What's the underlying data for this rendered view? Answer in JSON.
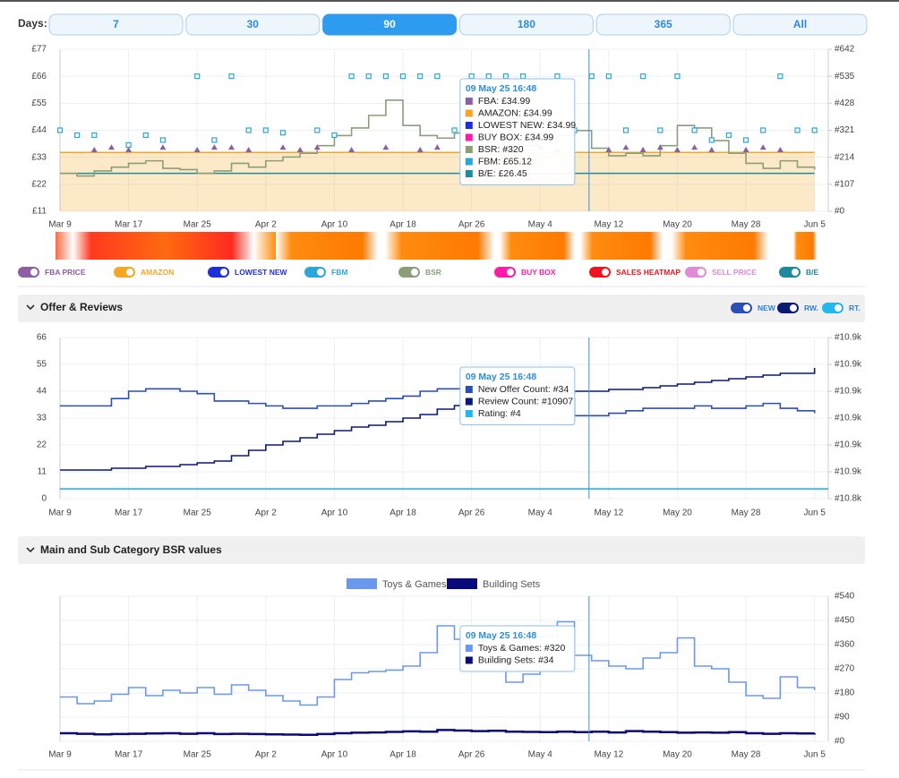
{
  "days": {
    "label": "Days:",
    "options": [
      "7",
      "30",
      "90",
      "180",
      "365",
      "All"
    ],
    "active": 2
  },
  "price_chart": {
    "xlim": [
      0,
      89.6
    ],
    "xticks": [
      {
        "value": 0,
        "label": "Mar 9"
      },
      {
        "value": 8,
        "label": "Mar 17"
      },
      {
        "value": 16,
        "label": "Mar 25"
      },
      {
        "value": 24,
        "label": "Apr 2"
      },
      {
        "value": 32,
        "label": "Apr 10"
      },
      {
        "value": 40,
        "label": "Apr 18"
      },
      {
        "value": 48,
        "label": "Apr 26"
      },
      {
        "value": 56,
        "label": "May 4"
      },
      {
        "value": 64,
        "label": "May 12"
      },
      {
        "value": 72,
        "label": "May 20"
      },
      {
        "value": 80,
        "label": "May 28"
      },
      {
        "value": 88,
        "label": "Jun 5"
      }
    ],
    "ylim": [
      11,
      77
    ],
    "yticks": [
      {
        "value": 11,
        "label": "£11"
      },
      {
        "value": 22,
        "label": "£22"
      },
      {
        "value": 33,
        "label": "£33"
      },
      {
        "value": 44,
        "label": "£44"
      },
      {
        "value": 55,
        "label": "£55"
      },
      {
        "value": 66,
        "label": "£66"
      },
      {
        "value": 77,
        "label": "£77"
      }
    ],
    "y2lim": [
      0,
      642
    ],
    "y2ticks": [
      {
        "value": 0,
        "label": "#0"
      },
      {
        "value": 107,
        "label": "#107"
      },
      {
        "value": 214,
        "label": "#214"
      },
      {
        "value": 321,
        "label": "#321"
      },
      {
        "value": 428,
        "label": "#428"
      },
      {
        "value": 535,
        "label": "#535"
      },
      {
        "value": 642,
        "label": "#642"
      }
    ],
    "series": [
      {
        "kind": "area",
        "color": "#f5a623",
        "x": [
          0,
          88
        ],
        "values": [
          34.99,
          34.99
        ]
      },
      {
        "kind": "line",
        "color": "#1f8a99",
        "x": [
          0,
          88
        ],
        "values": [
          26.45,
          26.45
        ]
      },
      {
        "kind": "step",
        "color": "#8a9f78",
        "axis": "y2",
        "x": [
          0,
          2,
          4,
          6,
          8,
          10,
          12,
          14,
          16,
          18,
          20,
          22,
          24,
          26,
          28,
          30,
          32,
          34,
          36,
          38,
          40,
          42,
          44,
          46,
          48,
          50,
          52,
          54,
          56,
          58,
          60,
          62,
          64,
          66,
          68,
          70,
          72,
          74,
          76,
          78,
          80,
          82,
          84,
          86,
          88
        ],
        "values": [
          150,
          140,
          160,
          175,
          190,
          200,
          170,
          165,
          150,
          160,
          190,
          175,
          200,
          215,
          230,
          260,
          300,
          330,
          380,
          440,
          340,
          300,
          290,
          310,
          350,
          300,
          280,
          260,
          270,
          300,
          320,
          250,
          220,
          230,
          220,
          260,
          340,
          330,
          280,
          230,
          190,
          170,
          200,
          175,
          165
        ]
      },
      {
        "kind": "triangle",
        "color": "#8e5ea2",
        "x": [
          4,
          6,
          8,
          12,
          16,
          18,
          20,
          22,
          26,
          28,
          30,
          34,
          38,
          42,
          44,
          48,
          50,
          52,
          56,
          58,
          64,
          66,
          68,
          70,
          72,
          74,
          76,
          80,
          82,
          84
        ],
        "values": [
          36,
          37,
          36,
          37,
          36,
          37,
          37,
          36,
          37,
          36,
          37,
          36,
          37,
          36,
          37,
          36,
          37,
          36,
          37,
          36,
          36,
          37,
          36,
          37,
          36,
          37,
          36,
          36,
          37,
          36
        ]
      },
      {
        "kind": "square",
        "color": "#2aa7d8",
        "x": [
          0,
          2,
          4,
          8,
          10,
          12,
          16,
          18,
          20,
          22,
          24,
          26,
          30,
          32,
          34,
          36,
          38,
          40,
          42,
          44,
          46,
          48,
          50,
          52,
          54,
          56,
          58,
          60,
          62,
          64,
          66,
          68,
          70,
          72,
          74,
          76,
          78,
          80,
          82,
          84,
          86,
          88
        ],
        "values": [
          44,
          42,
          42,
          38,
          42,
          40,
          66,
          40,
          66,
          44,
          44,
          43,
          44,
          42,
          66,
          66,
          66,
          66,
          66,
          66,
          44,
          66,
          66,
          66,
          66,
          42,
          66,
          44,
          66,
          66,
          44,
          66,
          44,
          66,
          44,
          40,
          42,
          40,
          44,
          66,
          44,
          44
        ]
      }
    ],
    "tooltip": {
      "x": 61.7,
      "title": "09 May 25 16:48",
      "items": [
        {
          "text": "FBA: £34.99",
          "color": "#8e5ea2"
        },
        {
          "text": "AMAZON: £34.99",
          "color": "#f5a623"
        },
        {
          "text": "LOWEST NEW: £34.99",
          "color": "#1f2fd6"
        },
        {
          "text": "BUY BOX: £34.99",
          "color": "#ff1aa8"
        },
        {
          "text": "BSR: #320",
          "color": "#8a9f78"
        },
        {
          "text": "FBM: £65.12",
          "color": "#2aa7d8"
        },
        {
          "text": "B/E: £26.45",
          "color": "#1f8a99"
        }
      ]
    }
  },
  "legend": [
    {
      "name": "FBA PRICE",
      "color": "#8e5ea2"
    },
    {
      "name": "AMAZON",
      "color": "#f5a623"
    },
    {
      "name": "LOWEST NEW",
      "color": "#1f2fd6"
    },
    {
      "name": "FBM",
      "color": "#2aa7d8"
    },
    {
      "name": "BSR",
      "color": "#8a9f78"
    },
    {
      "name": "BUY BOX",
      "color": "#ff1aa8"
    },
    {
      "name": "SALES HEATMAP",
      "color": "#f0141e"
    },
    {
      "name": "SELL PRICE",
      "color": "#e08ad8"
    },
    {
      "name": "B/E",
      "color": "#1f8a99"
    }
  ],
  "offers_section": {
    "title": "Offer & Reviews",
    "toggles": [
      {
        "name": "NEW",
        "color": "#2c4fb5"
      },
      {
        "name": "RW.",
        "color": "#0a1a6e"
      },
      {
        "name": "RT.",
        "color": "#22b8ee"
      }
    ]
  },
  "offers_chart": {
    "xlim": [
      0,
      89.6
    ],
    "xticks": [
      {
        "value": 0,
        "label": "Mar 9"
      },
      {
        "value": 8,
        "label": "Mar 17"
      },
      {
        "value": 16,
        "label": "Mar 25"
      },
      {
        "value": 24,
        "label": "Apr 2"
      },
      {
        "value": 32,
        "label": "Apr 10"
      },
      {
        "value": 40,
        "label": "Apr 18"
      },
      {
        "value": 48,
        "label": "Apr 26"
      },
      {
        "value": 56,
        "label": "May 4"
      },
      {
        "value": 64,
        "label": "May 12"
      },
      {
        "value": 72,
        "label": "May 20"
      },
      {
        "value": 80,
        "label": "May 28"
      },
      {
        "value": 88,
        "label": "Jun 5"
      }
    ],
    "ylim": [
      0,
      66
    ],
    "yticks": [
      0,
      11,
      22,
      33,
      44,
      55,
      66
    ],
    "y2lim": [
      10847,
      10937
    ],
    "y2ticks": [
      {
        "value": 10847,
        "label": "#10.8k"
      },
      {
        "value": 10862,
        "label": "#10.9k"
      },
      {
        "value": 10877,
        "label": "#10.9k"
      },
      {
        "value": 10892,
        "label": "#10.9k"
      },
      {
        "value": 10907,
        "label": "#10.9k"
      },
      {
        "value": 10922,
        "label": "#10.9k"
      },
      {
        "value": 10937,
        "label": "#10.9k"
      }
    ],
    "series": [
      {
        "kind": "step",
        "color": "#2c4fb5",
        "x": [
          0,
          2,
          4,
          6,
          8,
          10,
          12,
          14,
          16,
          18,
          20,
          22,
          24,
          26,
          28,
          30,
          32,
          34,
          36,
          38,
          40,
          42,
          44,
          46,
          48,
          50,
          52,
          54,
          56,
          58,
          60,
          62,
          64,
          66,
          68,
          70,
          72,
          74,
          76,
          78,
          80,
          82,
          84,
          86,
          88
        ],
        "values": [
          38,
          38,
          38,
          41,
          44,
          45,
          45,
          44,
          43,
          40,
          40,
          39,
          38,
          37,
          37,
          38,
          38,
          39,
          40,
          41,
          42,
          44,
          45,
          45,
          46,
          45,
          43,
          42,
          41,
          41,
          34,
          34,
          35,
          36,
          37,
          37,
          37,
          38,
          37,
          37,
          38,
          39,
          37,
          36,
          35
        ]
      },
      {
        "kind": "step",
        "color": "#0a1a6e",
        "axis": "y2",
        "x": [
          0,
          2,
          4,
          6,
          8,
          10,
          12,
          14,
          16,
          18,
          20,
          22,
          24,
          26,
          28,
          30,
          32,
          34,
          36,
          38,
          40,
          42,
          44,
          46,
          48,
          50,
          52,
          54,
          56,
          58,
          60,
          62,
          64,
          66,
          68,
          70,
          72,
          74,
          76,
          78,
          80,
          82,
          84,
          86,
          88
        ],
        "values": [
          10863,
          10863,
          10863,
          10864,
          10864,
          10865,
          10865,
          10866,
          10867,
          10868,
          10871,
          10874,
          10877,
          10879,
          10881,
          10883,
          10885,
          10887,
          10888,
          10890,
          10892,
          10894,
          10897,
          10899,
          10901,
          10902,
          10903,
          10904,
          10905,
          10906,
          10907,
          10907,
          10908,
          10908,
          10909,
          10910,
          10911,
          10912,
          10913,
          10914,
          10915,
          10916,
          10917,
          10917,
          10920
        ]
      },
      {
        "kind": "line",
        "color": "#22b8ee",
        "x": [
          0,
          89.6
        ],
        "values": [
          4,
          4
        ]
      }
    ],
    "tooltip": {
      "x": 61.7,
      "title": "09 May 25 16:48",
      "items": [
        {
          "text": "New Offer Count: #34",
          "color": "#2c4fb5"
        },
        {
          "text": "Review Count: #10907",
          "color": "#0a1a6e"
        },
        {
          "text": "Rating: #4",
          "color": "#22b8ee"
        }
      ]
    }
  },
  "bsr_section": {
    "title": "Main and Sub Category BSR values"
  },
  "bsr_chart": {
    "legend": [
      {
        "name": "Toys & Games",
        "color": "#6a98ee"
      },
      {
        "name": "Building Sets",
        "color": "#0a0a7a"
      }
    ],
    "xlim": [
      0,
      89.6
    ],
    "xticks": [
      {
        "value": 0,
        "label": "Mar 9"
      },
      {
        "value": 8,
        "label": "Mar 17"
      },
      {
        "value": 16,
        "label": "Mar 25"
      },
      {
        "value": 24,
        "label": "Apr 2"
      },
      {
        "value": 32,
        "label": "Apr 10"
      },
      {
        "value": 40,
        "label": "Apr 18"
      },
      {
        "value": 48,
        "label": "Apr 26"
      },
      {
        "value": 56,
        "label": "May 4"
      },
      {
        "value": 64,
        "label": "May 12"
      },
      {
        "value": 72,
        "label": "May 20"
      },
      {
        "value": 80,
        "label": "May 28"
      },
      {
        "value": 88,
        "label": "Jun 5"
      }
    ],
    "y2lim": [
      0,
      540
    ],
    "y2ticks": [
      {
        "value": 0,
        "label": "#0"
      },
      {
        "value": 90,
        "label": "#90"
      },
      {
        "value": 180,
        "label": "#180"
      },
      {
        "value": 270,
        "label": "#270"
      },
      {
        "value": 360,
        "label": "#360"
      },
      {
        "value": 450,
        "label": "#450"
      },
      {
        "value": 540,
        "label": "#540"
      }
    ],
    "series": [
      {
        "kind": "step",
        "color": "#6a98ee",
        "axis": "y2",
        "x": [
          0,
          2,
          4,
          6,
          8,
          10,
          12,
          14,
          16,
          18,
          20,
          22,
          24,
          26,
          28,
          30,
          32,
          34,
          36,
          38,
          40,
          42,
          44,
          46,
          48,
          50,
          52,
          54,
          56,
          58,
          60,
          62,
          64,
          66,
          68,
          70,
          72,
          74,
          76,
          78,
          80,
          82,
          84,
          86,
          88
        ],
        "values": [
          165,
          140,
          150,
          175,
          200,
          170,
          190,
          180,
          200,
          175,
          210,
          190,
          170,
          150,
          135,
          165,
          230,
          255,
          260,
          265,
          280,
          330,
          430,
          380,
          350,
          300,
          220,
          250,
          390,
          445,
          320,
          300,
          280,
          270,
          310,
          330,
          385,
          280,
          270,
          220,
          170,
          160,
          240,
          200,
          190
        ]
      },
      {
        "kind": "step",
        "color": "#0a0a7a",
        "axis": "y2",
        "width": 2.5,
        "x": [
          0,
          2,
          4,
          6,
          8,
          10,
          12,
          14,
          16,
          18,
          20,
          22,
          24,
          26,
          28,
          30,
          32,
          34,
          36,
          38,
          40,
          42,
          44,
          46,
          48,
          50,
          52,
          54,
          56,
          58,
          60,
          62,
          64,
          66,
          68,
          70,
          72,
          74,
          76,
          78,
          80,
          82,
          84,
          86,
          88
        ],
        "values": [
          30,
          28,
          26,
          27,
          28,
          29,
          30,
          28,
          30,
          27,
          28,
          27,
          26,
          25,
          24,
          27,
          30,
          32,
          33,
          35,
          37,
          36,
          42,
          40,
          38,
          39,
          36,
          35,
          34,
          36,
          34,
          36,
          33,
          38,
          36,
          34,
          32,
          33,
          32,
          34,
          30,
          28,
          30,
          29,
          30
        ]
      }
    ],
    "tooltip": {
      "x": 61.7,
      "title": "09 May 25 16:48",
      "items": [
        {
          "text": "Toys & Games: #320",
          "color": "#6a98ee"
        },
        {
          "text": "Building Sets: #34",
          "color": "#0a0a7a"
        }
      ]
    }
  }
}
